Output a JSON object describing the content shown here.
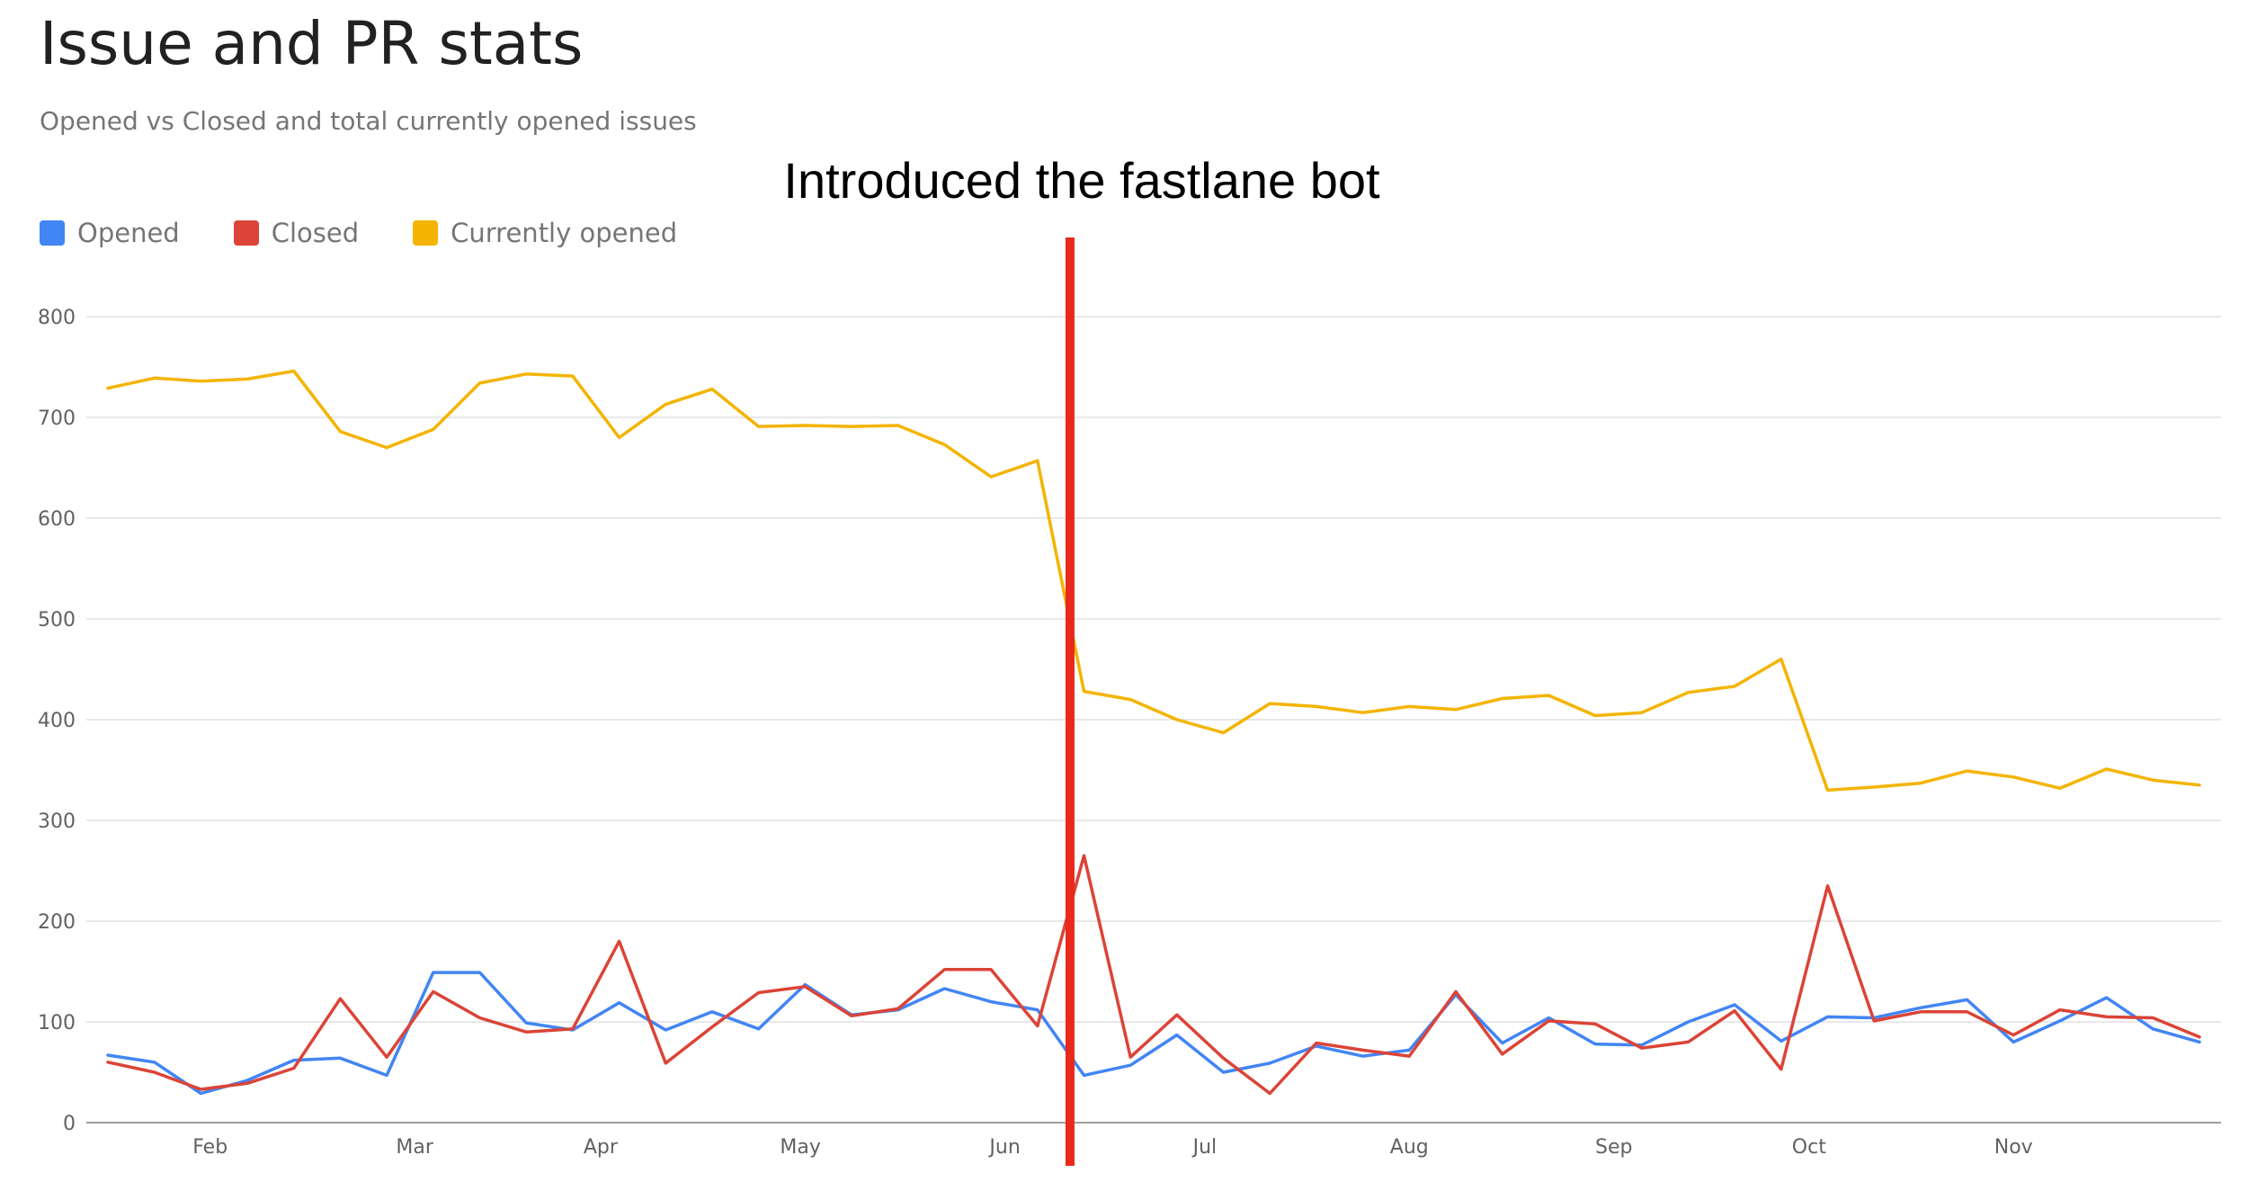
{
  "header": {
    "title": "Issue and PR stats",
    "subtitle": "Opened vs Closed and total currently opened issues"
  },
  "annotation": {
    "text": "Introduced the fastlane bot",
    "color": "#e8291c"
  },
  "chart_data": {
    "type": "line",
    "title": "Issue and PR stats",
    "subtitle": "Opened vs Closed and total currently opened issues",
    "xlabel": "",
    "ylabel": "",
    "ylim": [
      0,
      800
    ],
    "yticks": [
      "0",
      "100",
      "200",
      "300",
      "400",
      "500",
      "600",
      "700",
      "800"
    ],
    "xticks": [
      {
        "label": "Feb",
        "at": 2.2
      },
      {
        "label": "Mar",
        "at": 6.6
      },
      {
        "label": "Apr",
        "at": 10.6
      },
      {
        "label": "May",
        "at": 14.9
      },
      {
        "label": "Jun",
        "at": 19.3
      },
      {
        "label": "Jul",
        "at": 23.6
      },
      {
        "label": "Aug",
        "at": 28.0
      },
      {
        "label": "Sep",
        "at": 32.4
      },
      {
        "label": "Oct",
        "at": 36.6
      },
      {
        "label": "Nov",
        "at": 41.0
      }
    ],
    "x": [
      0,
      1,
      2,
      3,
      4,
      5,
      6,
      7,
      8,
      9,
      10,
      11,
      12,
      13,
      14,
      15,
      16,
      17,
      18,
      19,
      20,
      21,
      22,
      23,
      24,
      25,
      26,
      27,
      28,
      29,
      30,
      31,
      32,
      33,
      34,
      35,
      36,
      37,
      38,
      39,
      40,
      41,
      42,
      43,
      44,
      45
    ],
    "legend_position": "top-left",
    "grid": true,
    "marker_at": 20.7,
    "series": [
      {
        "name": "Opened",
        "color": "#4285f4",
        "values": [
          67,
          60,
          29,
          42,
          62,
          64,
          47,
          149,
          149,
          99,
          92,
          119,
          92,
          110,
          93,
          137,
          107,
          112,
          133,
          120,
          112,
          47,
          57,
          87,
          50,
          59,
          76,
          66,
          72,
          127,
          79,
          104,
          78,
          77,
          100,
          117,
          81,
          105,
          104,
          114,
          122,
          80,
          101,
          124,
          93,
          80
        ]
      },
      {
        "name": "Closed",
        "color": "#db4437",
        "values": [
          60,
          50,
          33,
          39,
          54,
          123,
          65,
          130,
          104,
          90,
          93,
          180,
          59,
          95,
          129,
          135,
          106,
          113,
          152,
          152,
          96,
          265,
          65,
          107,
          64,
          29,
          79,
          72,
          66,
          130,
          68,
          101,
          98,
          74,
          80,
          111,
          53,
          235,
          101,
          110,
          110,
          87,
          112,
          105,
          104,
          85
        ]
      },
      {
        "name": "Currently opened",
        "color": "#f4b400",
        "values": [
          729,
          739,
          736,
          738,
          746,
          686,
          670,
          688,
          734,
          743,
          741,
          680,
          713,
          728,
          691,
          692,
          691,
          692,
          673,
          641,
          657,
          428,
          420,
          400,
          387,
          416,
          413,
          407,
          413,
          410,
          421,
          424,
          404,
          407,
          427,
          433,
          460,
          330,
          333,
          337,
          349,
          343,
          332,
          351,
          340,
          335
        ]
      }
    ]
  }
}
